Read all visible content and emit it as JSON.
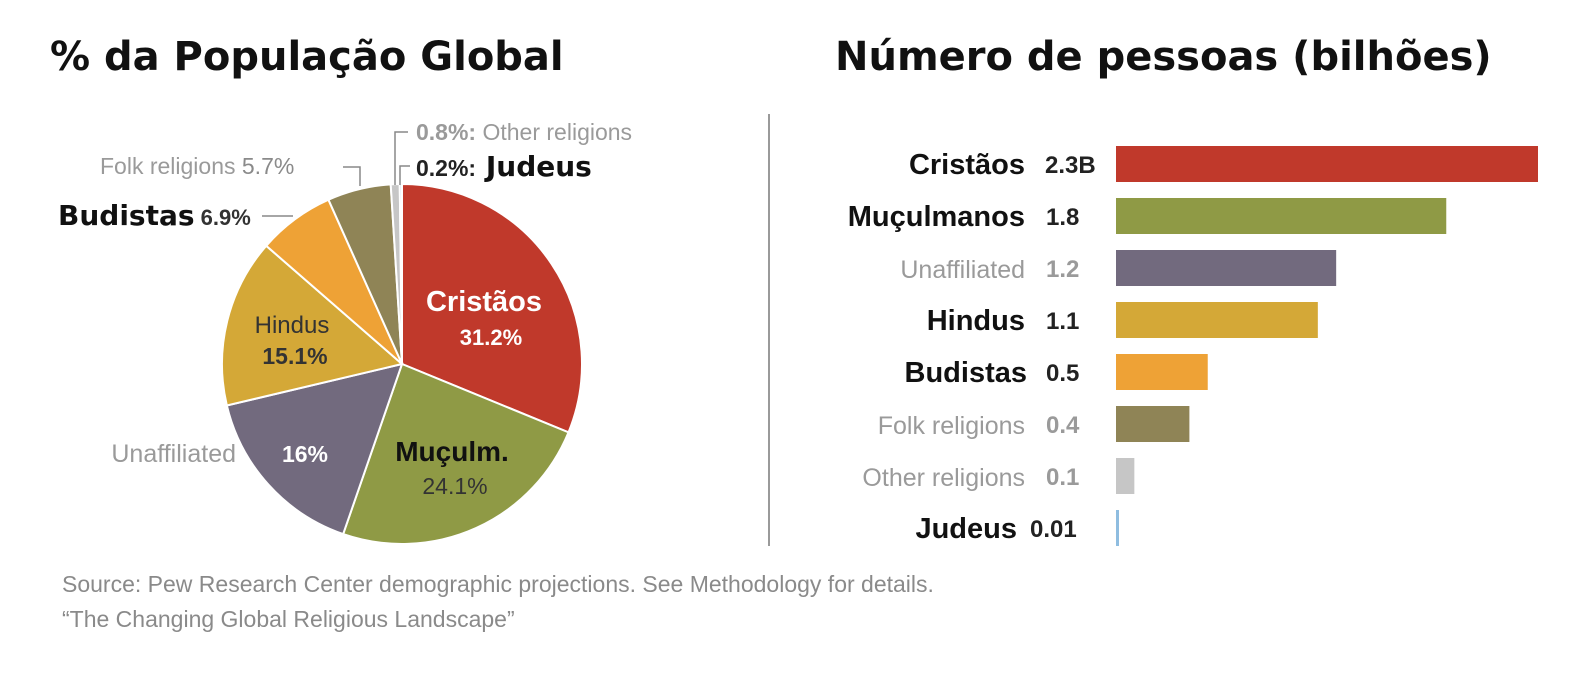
{
  "chart_data": [
    {
      "type": "pie",
      "title": "% da População Global",
      "slices": [
        {
          "label": "Cristãos",
          "value": 31.2,
          "value_label": "31.2%",
          "color": "#c0392b"
        },
        {
          "label": "Muçulm.",
          "value": 24.1,
          "value_label": "24.1%",
          "color": "#8f9a45"
        },
        {
          "label": "Unaffiliated",
          "value": 16,
          "value_label": "16%",
          "color": "#726a7e"
        },
        {
          "label": "Hindus",
          "value": 15.1,
          "value_label": "15.1%",
          "color": "#d4a837"
        },
        {
          "label": "Budistas",
          "value": 6.9,
          "value_label": "6.9%",
          "color": "#eea236"
        },
        {
          "label": "Folk religions",
          "value": 5.7,
          "value_label": "5.7%",
          "color": "#8f8456"
        },
        {
          "label": "Other religions",
          "value": 0.8,
          "value_label": "0.8%:",
          "color": "#c6c6c6"
        },
        {
          "label": "Judeus",
          "value": 0.2,
          "value_label": "0.2%:",
          "color": "#8fbde0"
        }
      ]
    },
    {
      "type": "bar",
      "orientation": "horizontal",
      "title": "Número de pessoas (bilhões)",
      "categories": [
        "Cristãos",
        "Muçulmanos",
        "Unaffiliated",
        "Hindus",
        "Budistas",
        "Folk religions",
        "Other religions",
        "Judeus"
      ],
      "values": [
        2.3,
        1.8,
        1.2,
        1.1,
        0.5,
        0.4,
        0.1,
        0.01
      ],
      "value_labels": [
        "2.3B",
        "1.8",
        "1.2",
        "1.1",
        "0.5",
        "0.4",
        "0.1",
        "0.01"
      ],
      "colors": [
        "#c0392b",
        "#8f9a45",
        "#726a7e",
        "#d4a837",
        "#eea236",
        "#8f8456",
        "#c6c6c6",
        "#8fbde0"
      ],
      "xlim": [
        0,
        2.3
      ]
    }
  ],
  "source_line1": "Source: Pew Research Center demographic projections. See Methodology for details.",
  "source_line2": "“The Changing Global Religious Landscape”"
}
